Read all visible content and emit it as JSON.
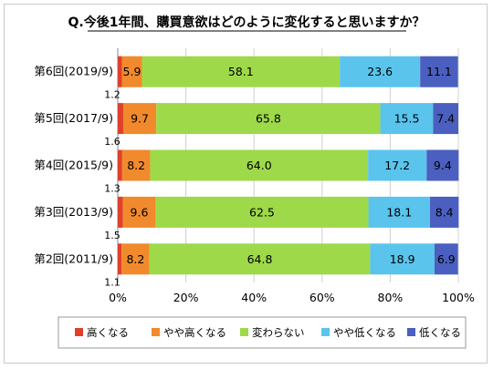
{
  "chart_data": {
    "type": "bar",
    "orientation": "horizontal",
    "stacked": "percent",
    "title": "Q.今後1年間、購買意欲はどのように変化すると思いますか？",
    "categories": [
      "第6回(2019/9)",
      "第5回(2017/9)",
      "第4回(2015/9)",
      "第3回(2013/9)",
      "第2回(2011/9)"
    ],
    "series": [
      {
        "name": "高くなる",
        "color": "#e0402a",
        "values": [
          1.2,
          1.6,
          1.3,
          1.5,
          1.1
        ],
        "labels": [
          "1.2",
          "1.6",
          "1.3",
          "1.5",
          "1.1"
        ]
      },
      {
        "name": "やや高くなる",
        "color": "#f08a2c",
        "values": [
          5.9,
          9.7,
          8.2,
          9.6,
          8.2
        ],
        "labels": [
          "5.9",
          "9.7",
          "8.2",
          "9.6",
          "8.2"
        ]
      },
      {
        "name": "変わらない",
        "color": "#9ed94a",
        "values": [
          58.1,
          65.8,
          64.0,
          62.5,
          64.8
        ],
        "labels": [
          "58.1",
          "65.8",
          "64.0",
          "62.5",
          "64.8"
        ]
      },
      {
        "name": "やや低くなる",
        "color": "#5ac4ec",
        "values": [
          23.6,
          15.5,
          17.2,
          18.1,
          18.9
        ],
        "labels": [
          "23.6",
          "15.5",
          "17.2",
          "18.1",
          "18.9"
        ]
      },
      {
        "name": "低くなる",
        "color": "#4a5fbf",
        "values": [
          11.1,
          7.4,
          9.4,
          8.4,
          6.9
        ],
        "labels": [
          "11.1",
          "7.4",
          "9.4",
          "8.4",
          "6.9"
        ]
      }
    ],
    "xlim": [
      0,
      100
    ],
    "x_ticks": [
      "0%",
      "20%",
      "40%",
      "60%",
      "80%",
      "100%"
    ],
    "grid": true,
    "legend_position": "bottom"
  }
}
